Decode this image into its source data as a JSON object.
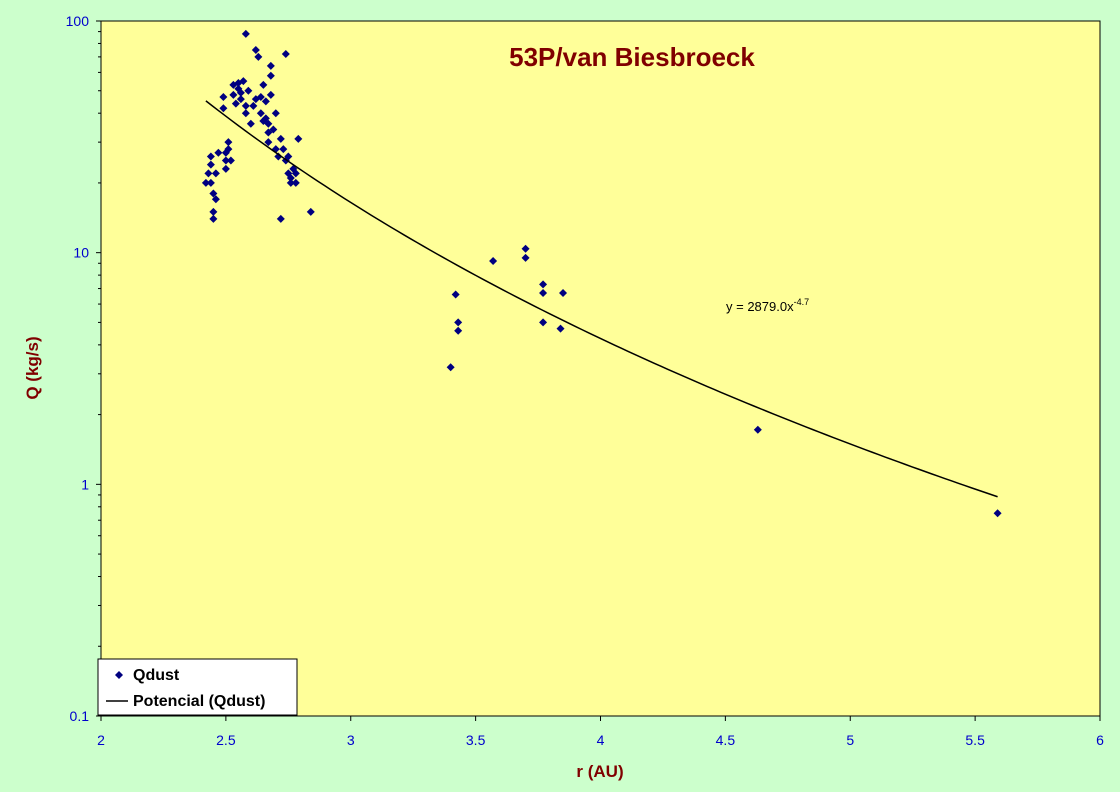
{
  "chart_data": {
    "type": "scatter",
    "title": "53P/van Biesbroeck",
    "xlabel": "r (AU)",
    "ylabel": "Q (kg/s)",
    "xlim": [
      2,
      6
    ],
    "ylim": [
      0.1,
      100
    ],
    "yscale": "log",
    "x_ticks": [
      "2",
      "2.5",
      "3",
      "3.5",
      "4",
      "4.5",
      "5",
      "5.5",
      "6"
    ],
    "y_ticks": [
      "0.1",
      "1",
      "10",
      "100"
    ],
    "grid": false,
    "legend_position": "bottom-left",
    "colors": {
      "plot_background": "#ffff99",
      "page_background": "#ccffcc",
      "marker": "#000080",
      "trendline": "#000000",
      "title": "#800000",
      "tick_labels": "#0000cc"
    },
    "series": [
      {
        "name": "Qdust",
        "marker": "diamond",
        "points": [
          [
            2.42,
            20
          ],
          [
            2.43,
            22
          ],
          [
            2.44,
            26
          ],
          [
            2.44,
            24
          ],
          [
            2.44,
            20
          ],
          [
            2.45,
            18
          ],
          [
            2.45,
            15
          ],
          [
            2.45,
            14
          ],
          [
            2.46,
            22
          ],
          [
            2.46,
            17
          ],
          [
            2.47,
            27
          ],
          [
            2.49,
            42
          ],
          [
            2.49,
            47
          ],
          [
            2.5,
            23
          ],
          [
            2.5,
            25
          ],
          [
            2.5,
            27
          ],
          [
            2.51,
            28
          ],
          [
            2.51,
            30
          ],
          [
            2.52,
            25
          ],
          [
            2.53,
            48
          ],
          [
            2.53,
            53
          ],
          [
            2.54,
            44
          ],
          [
            2.55,
            51
          ],
          [
            2.55,
            54
          ],
          [
            2.56,
            46
          ],
          [
            2.56,
            49
          ],
          [
            2.57,
            55
          ],
          [
            2.58,
            40
          ],
          [
            2.58,
            43
          ],
          [
            2.58,
            88
          ],
          [
            2.59,
            50
          ],
          [
            2.6,
            36
          ],
          [
            2.61,
            43
          ],
          [
            2.62,
            46
          ],
          [
            2.62,
            75
          ],
          [
            2.63,
            70
          ],
          [
            2.64,
            47
          ],
          [
            2.64,
            40
          ],
          [
            2.65,
            53
          ],
          [
            2.65,
            37
          ],
          [
            2.66,
            45
          ],
          [
            2.66,
            38
          ],
          [
            2.67,
            36
          ],
          [
            2.67,
            33
          ],
          [
            2.67,
            30
          ],
          [
            2.68,
            58
          ],
          [
            2.68,
            64
          ],
          [
            2.68,
            48
          ],
          [
            2.69,
            34
          ],
          [
            2.7,
            28
          ],
          [
            2.7,
            40
          ],
          [
            2.71,
            26
          ],
          [
            2.72,
            14
          ],
          [
            2.72,
            31
          ],
          [
            2.73,
            28
          ],
          [
            2.74,
            25
          ],
          [
            2.74,
            72
          ],
          [
            2.75,
            26
          ],
          [
            2.75,
            22
          ],
          [
            2.76,
            21
          ],
          [
            2.76,
            20
          ],
          [
            2.77,
            23
          ],
          [
            2.78,
            22
          ],
          [
            2.78,
            20
          ],
          [
            2.79,
            31
          ],
          [
            2.84,
            15
          ],
          [
            3.4,
            3.2
          ],
          [
            3.42,
            6.6
          ],
          [
            3.43,
            5
          ],
          [
            3.43,
            4.6
          ],
          [
            3.57,
            9.2
          ],
          [
            3.7,
            10.4
          ],
          [
            3.7,
            9.5
          ],
          [
            3.77,
            7.3
          ],
          [
            3.77,
            6.7
          ],
          [
            3.77,
            5
          ],
          [
            3.84,
            4.7
          ],
          [
            3.85,
            6.7
          ],
          [
            4.63,
            1.72
          ],
          [
            5.59,
            0.75
          ]
        ]
      },
      {
        "name": "Potencial (Qdust)",
        "type": "line",
        "equation": {
          "prefix": "y = 2879.0x",
          "exponent": "-4.7",
          "coefficient": 2879.0,
          "power": -4.7
        },
        "x_range": [
          2.42,
          5.59
        ]
      }
    ]
  }
}
